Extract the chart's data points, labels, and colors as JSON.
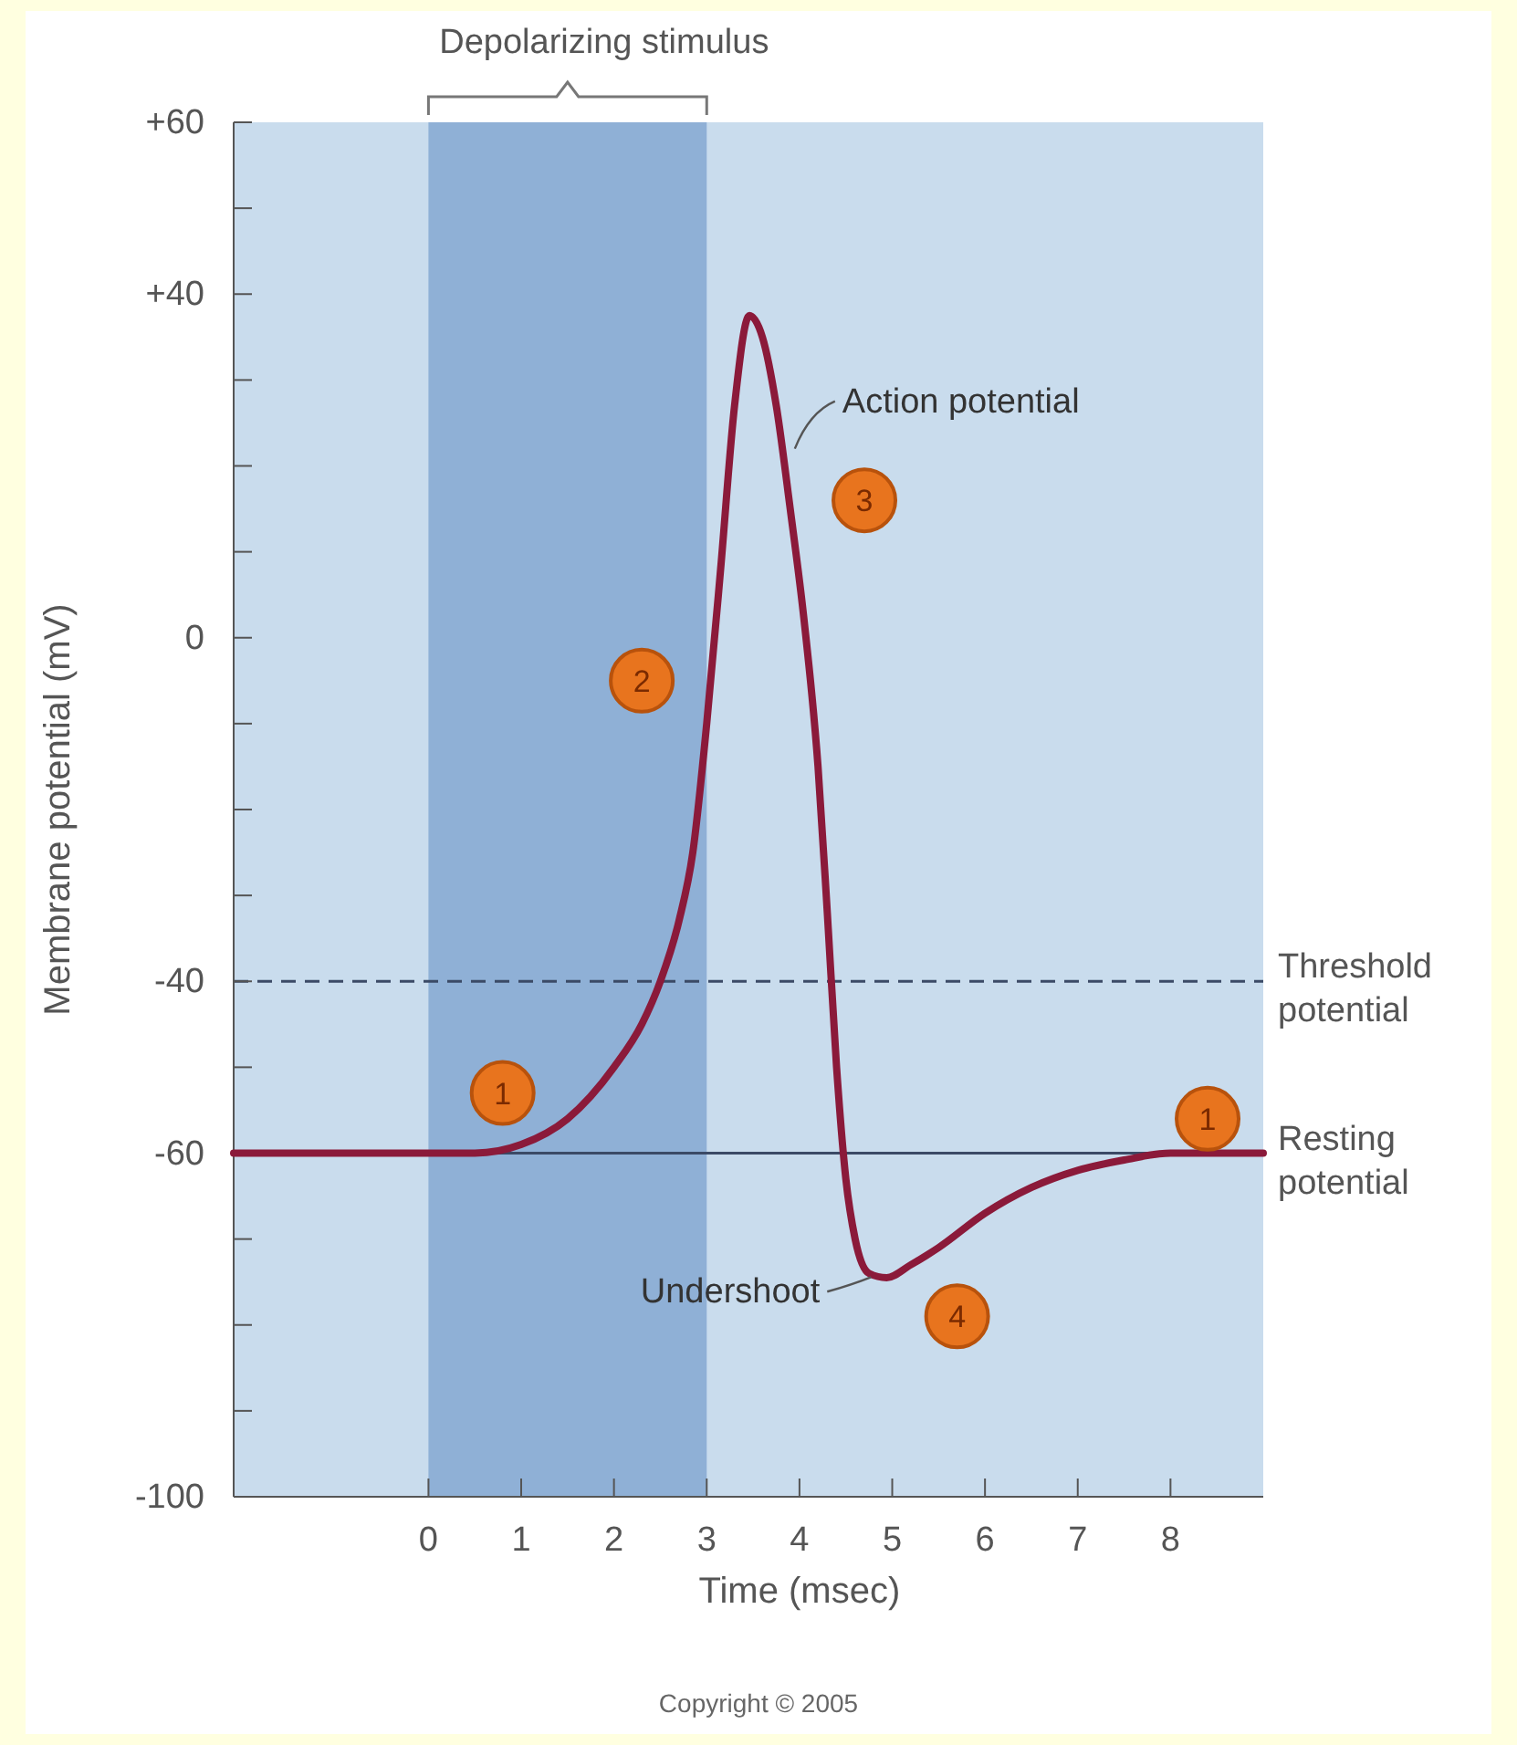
{
  "chart_data": {
    "type": "line",
    "xlabel": "Time (msec)",
    "ylabel": "Membrane potential (mV)",
    "xlim": [
      -2.1,
      9
    ],
    "ylim": [
      -100,
      60
    ],
    "xticks": [
      0,
      1,
      2,
      3,
      4,
      5,
      6,
      7,
      8
    ],
    "yticks": [
      {
        "value": 60,
        "label": "+60"
      },
      {
        "value": 50,
        "label": null
      },
      {
        "value": 40,
        "label": "+40"
      },
      {
        "value": 30,
        "label": null
      },
      {
        "value": 20,
        "label": null
      },
      {
        "value": 10,
        "label": null
      },
      0,
      {
        "value": -10,
        "label": null
      },
      {
        "value": -20,
        "label": null
      },
      {
        "value": -30,
        "label": null
      },
      -40,
      {
        "value": -50,
        "label": null
      },
      -60,
      {
        "value": -70,
        "label": null
      },
      {
        "value": -80,
        "label": null
      },
      {
        "value": -90,
        "label": null
      },
      -100
    ],
    "grid": false,
    "marker": "none",
    "line_style": "solid",
    "series": [
      {
        "color": "#8b1a3a",
        "x": [
          -2.1,
          0,
          0.5,
          1,
          1.5,
          2,
          2.3,
          2.5,
          2.7,
          2.85,
          3,
          3.15,
          3.3,
          3.46,
          3.6,
          3.75,
          3.9,
          4.05,
          4.2,
          4.3,
          4.4,
          4.5,
          4.6,
          4.75,
          4.94,
          5.2,
          5.5,
          6,
          6.5,
          7,
          7.5,
          8,
          9
        ],
        "values": [
          -60,
          -60,
          -60,
          -59,
          -56,
          -50,
          -45,
          -40,
          -33,
          -25,
          -10,
          8,
          27,
          37.5,
          35,
          27,
          15,
          2,
          -15,
          -32,
          -50,
          -63,
          -70,
          -74,
          -74.5,
          -73,
          -71,
          -67,
          -64,
          -62,
          -60.8,
          -60,
          -60
        ]
      }
    ],
    "bands": [
      {
        "axis": "x",
        "from": 0,
        "to": 3,
        "label": "Depolarizing stimulus",
        "color": "#8fb0d6"
      }
    ],
    "ref_lines": [
      {
        "axis": "y",
        "value": -40,
        "label": "Threshold potential",
        "line_style": "dashed",
        "color": "#3b4a66"
      },
      {
        "axis": "y",
        "value": -60,
        "label": "Resting potential",
        "line_style": "solid",
        "color": "#3b4a66"
      }
    ],
    "annotations": [
      {
        "text": "Action potential",
        "x": 3.95,
        "y": 22
      },
      {
        "text": "Undershoot",
        "x": 4.85,
        "y": -74
      },
      {
        "text": "1",
        "x": 0.8,
        "y": -53
      },
      {
        "text": "2",
        "x": 2.3,
        "y": -5
      },
      {
        "text": "3",
        "x": 4.7,
        "y": 16
      },
      {
        "text": "4",
        "x": 5.7,
        "y": -79
      },
      {
        "text": "1",
        "x": 8.4,
        "y": -56
      },
      "Copyright © 2005"
    ]
  }
}
